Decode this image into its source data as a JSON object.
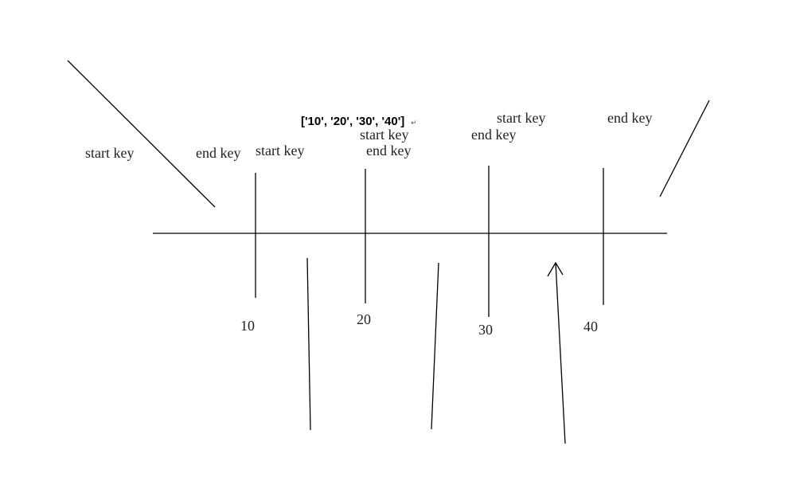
{
  "key_list_label": "['10', '20', '30', '40']",
  "return_mark": "↵",
  "ticks": [
    "10",
    "20",
    "30",
    "40"
  ],
  "labels": {
    "start_key": "start key",
    "end_key": "end key"
  }
}
